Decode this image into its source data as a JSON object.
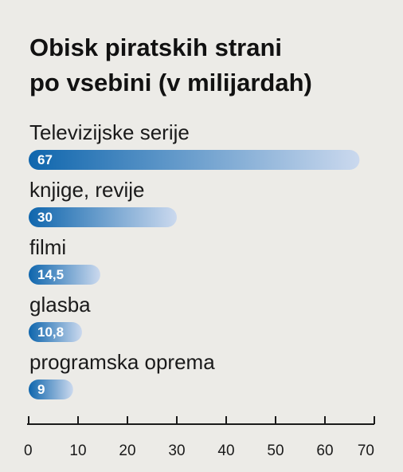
{
  "chart_data": {
    "type": "bar",
    "orientation": "horizontal",
    "title": "Obisk piratskih strani",
    "subtitle": "po vsebini (v milijardah)",
    "categories": [
      "Televizijske serije",
      "knjige, revije",
      "filmi",
      "glasba",
      "programska oprema"
    ],
    "values": [
      67,
      30,
      14.5,
      10.8,
      9
    ],
    "value_labels": [
      "67",
      "30",
      "14,5",
      "10,8",
      "9"
    ],
    "xlim": [
      0,
      70
    ],
    "x_ticks": [
      0,
      10,
      20,
      30,
      40,
      50,
      60,
      70
    ],
    "grid": false,
    "colors": {
      "bar_start": "#0f66ad",
      "bar_end": "#cbd9ee",
      "background": "#ecebe7"
    }
  }
}
